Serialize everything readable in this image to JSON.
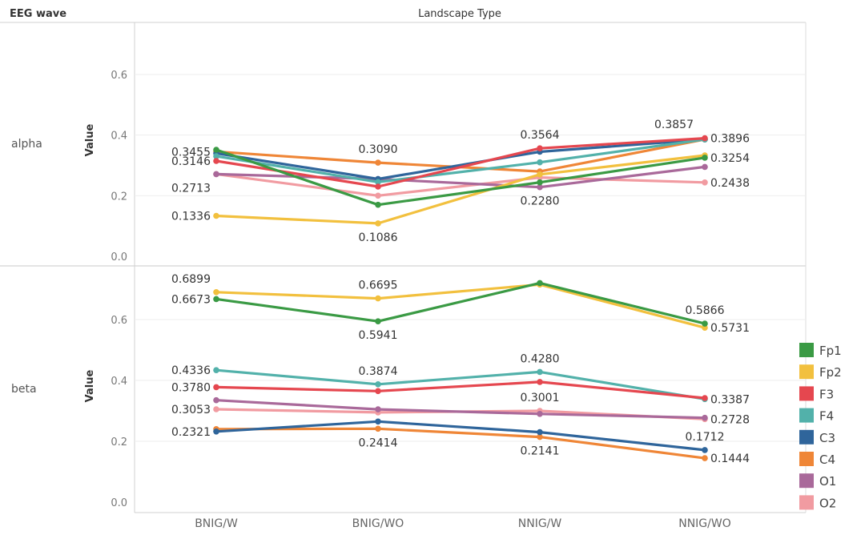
{
  "chart_data": {
    "type": "line",
    "row_header": "EEG wave",
    "column_header": "Landscape Type",
    "ylabel": "Value",
    "categories": [
      "BNIG/W",
      "BNIG/WO",
      "NNIG/W",
      "NNIG/WO"
    ],
    "colors": {
      "Fp1": "#3a9a44",
      "Fp2": "#f2c03e",
      "F3": "#e5474f",
      "F4": "#52b1aa",
      "C3": "#2f659b",
      "C4": "#ef8637",
      "O1": "#a9699a",
      "O2": "#f19ba1"
    },
    "legend": [
      "Fp1",
      "Fp2",
      "F3",
      "F4",
      "C3",
      "C4",
      "O1",
      "O2"
    ],
    "panels": [
      {
        "name": "alpha",
        "ylim": [
          0,
          0.76
        ],
        "yticks": [
          "0.0",
          "0.2",
          "0.4",
          "0.6"
        ],
        "series": [
          {
            "name": "Fp1",
            "values": [
              0.3515,
              0.17,
              0.244,
              0.3254
            ]
          },
          {
            "name": "Fp2",
            "values": [
              0.1336,
              0.1086,
              0.27,
              0.333
            ]
          },
          {
            "name": "F3",
            "values": [
              0.3146,
              0.23,
              0.3564,
              0.3896
            ]
          },
          {
            "name": "F4",
            "values": [
              0.33,
              0.245,
              0.31,
              0.3857
            ]
          },
          {
            "name": "C3",
            "values": [
              0.34,
              0.255,
              0.345,
              0.3857
            ]
          },
          {
            "name": "C4",
            "values": [
              0.3455,
              0.309,
              0.28,
              0.3857
            ]
          },
          {
            "name": "O1",
            "values": [
              0.2713,
              0.255,
              0.228,
              0.295
            ]
          },
          {
            "name": "O2",
            "values": [
              0.2713,
              0.2,
              0.26,
              0.2438
            ]
          }
        ],
        "labels": [
          {
            "text": "0.3455",
            "col": 0,
            "value": 0.3455,
            "anchor": "left"
          },
          {
            "text": "0.3146",
            "col": 0,
            "value": 0.3146,
            "anchor": "left"
          },
          {
            "text": "0.2713",
            "col": 0,
            "value": 0.2713,
            "anchor": "left-below"
          },
          {
            "text": "0.1336",
            "col": 0,
            "value": 0.1336,
            "anchor": "left"
          },
          {
            "text": "0.3090",
            "col": 1,
            "value": 0.309,
            "anchor": "above"
          },
          {
            "text": "0.1086",
            "col": 1,
            "value": 0.1086,
            "anchor": "below"
          },
          {
            "text": "0.3564",
            "col": 2,
            "value": 0.3564,
            "anchor": "above"
          },
          {
            "text": "0.2280",
            "col": 2,
            "value": 0.228,
            "anchor": "below"
          },
          {
            "text": "0.3857",
            "col": 3,
            "value": 0.3857,
            "anchor": "above-left"
          },
          {
            "text": "0.3896",
            "col": 3,
            "value": 0.3896,
            "anchor": "right"
          },
          {
            "text": "0.3254",
            "col": 3,
            "value": 0.3254,
            "anchor": "right"
          },
          {
            "text": "0.2438",
            "col": 3,
            "value": 0.2438,
            "anchor": "right"
          }
        ]
      },
      {
        "name": "beta",
        "ylim": [
          -0.02,
          0.76
        ],
        "yticks": [
          "0.0",
          "0.2",
          "0.4",
          "0.6"
        ],
        "series": [
          {
            "name": "Fp1",
            "values": [
              0.6673,
              0.5941,
              0.72,
              0.5866
            ]
          },
          {
            "name": "Fp2",
            "values": [
              0.6899,
              0.6695,
              0.715,
              0.5731
            ]
          },
          {
            "name": "F3",
            "values": [
              0.378,
              0.365,
              0.395,
              0.342
            ]
          },
          {
            "name": "F4",
            "values": [
              0.4336,
              0.3874,
              0.428,
              0.3387
            ]
          },
          {
            "name": "C3",
            "values": [
              0.2321,
              0.265,
              0.23,
              0.1712
            ]
          },
          {
            "name": "C4",
            "values": [
              0.24,
              0.2414,
              0.2141,
              0.1444
            ]
          },
          {
            "name": "O1",
            "values": [
              0.335,
              0.305,
              0.29,
              0.277
            ]
          },
          {
            "name": "O2",
            "values": [
              0.3053,
              0.295,
              0.3001,
              0.2728
            ]
          }
        ],
        "labels": [
          {
            "text": "0.6899",
            "col": 0,
            "value": 0.6899,
            "anchor": "left-above"
          },
          {
            "text": "0.6673",
            "col": 0,
            "value": 0.6673,
            "anchor": "left"
          },
          {
            "text": "0.4336",
            "col": 0,
            "value": 0.4336,
            "anchor": "left"
          },
          {
            "text": "0.3780",
            "col": 0,
            "value": 0.378,
            "anchor": "left"
          },
          {
            "text": "0.3053",
            "col": 0,
            "value": 0.3053,
            "anchor": "left"
          },
          {
            "text": "0.2321",
            "col": 0,
            "value": 0.2321,
            "anchor": "left"
          },
          {
            "text": "0.6695",
            "col": 1,
            "value": 0.6695,
            "anchor": "above"
          },
          {
            "text": "0.5941",
            "col": 1,
            "value": 0.5941,
            "anchor": "below"
          },
          {
            "text": "0.3874",
            "col": 1,
            "value": 0.3874,
            "anchor": "above"
          },
          {
            "text": "0.2414",
            "col": 1,
            "value": 0.2414,
            "anchor": "below"
          },
          {
            "text": "0.4280",
            "col": 2,
            "value": 0.428,
            "anchor": "above"
          },
          {
            "text": "0.3001",
            "col": 2,
            "value": 0.3001,
            "anchor": "above"
          },
          {
            "text": "0.2141",
            "col": 2,
            "value": 0.2141,
            "anchor": "below"
          },
          {
            "text": "0.5866",
            "col": 3,
            "value": 0.5866,
            "anchor": "above"
          },
          {
            "text": "0.5731",
            "col": 3,
            "value": 0.5731,
            "anchor": "right"
          },
          {
            "text": "0.3387",
            "col": 3,
            "value": 0.3387,
            "anchor": "right"
          },
          {
            "text": "0.2728",
            "col": 3,
            "value": 0.2728,
            "anchor": "right"
          },
          {
            "text": "0.1712",
            "col": 3,
            "value": 0.1712,
            "anchor": "above"
          },
          {
            "text": "0.1444",
            "col": 3,
            "value": 0.1444,
            "anchor": "right"
          }
        ]
      }
    ]
  }
}
